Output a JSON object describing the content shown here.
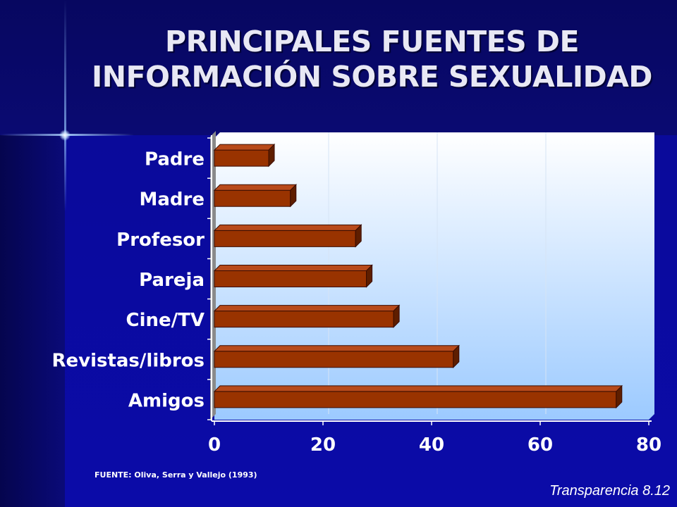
{
  "title": "PRINCIPALES FUENTES DE INFORMACIÓN SOBRE SEXUALIDAD",
  "source": "FUENTE: Oliva, Serra y Vallejo  (1993)",
  "footer": "Transparencia 8.12",
  "colors": {
    "bar_front": "#993300",
    "bar_top": "#b84a1a",
    "bar_side": "#5e1e00",
    "plot_top": "#ffffff",
    "plot_bottom": "#9ccaff"
  },
  "chart_data": {
    "type": "bar",
    "orientation": "horizontal",
    "categories": [
      "Padre",
      "Madre",
      "Profesor",
      "Pareja",
      "Cine/TV",
      "Revistas/libros",
      "Amigos"
    ],
    "values": [
      10,
      14,
      26,
      28,
      33,
      44,
      74
    ],
    "xlim": [
      0,
      80
    ],
    "xticks": [
      0,
      20,
      40,
      60,
      80
    ],
    "grid": true
  }
}
